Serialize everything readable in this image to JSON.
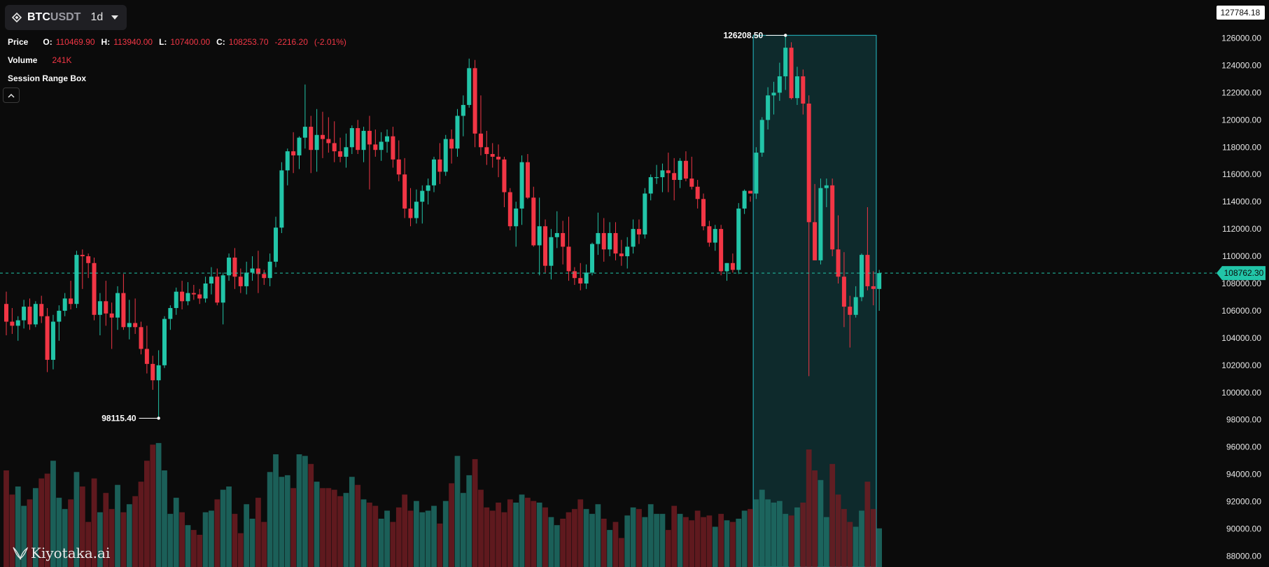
{
  "toolbar": {
    "symbol_base": "BTC",
    "symbol_quote": "USDT",
    "timeframe": "1d"
  },
  "legend": {
    "price_label": "Price",
    "o_key": "O:",
    "o_val": "110469.90",
    "h_key": "H:",
    "h_val": "113940.00",
    "l_key": "L:",
    "l_val": "107400.00",
    "c_key": "C:",
    "c_val": "108253.70",
    "change": "-2216.20",
    "change_pct": "(-2.01%)",
    "volume_label": "Volume",
    "volume_val": "241K",
    "indicator_label": "Session Range Box"
  },
  "annotations": {
    "high_label": "126208.50",
    "low_label": "98115.40"
  },
  "price_axis": {
    "top_value": "127784.18",
    "current_price": "108762.30"
  },
  "watermark": "Kiyotaka.ai",
  "colors": {
    "up": "#22c5a8",
    "down": "#f23645",
    "background": "#0b0b0b",
    "range_box": "#1a7c84"
  },
  "chart_data": {
    "type": "candlestick",
    "symbol": "BTCUSDT",
    "timeframe": "1d",
    "ylim": [
      87200,
      128800
    ],
    "y_ticks": [
      88000,
      90000,
      92000,
      94000,
      96000,
      98000,
      100000,
      102000,
      104000,
      106000,
      108000,
      110000,
      112000,
      114000,
      116000,
      118000,
      120000,
      122000,
      124000,
      126000
    ],
    "current_price": 108762.3,
    "range_high": 126208.5,
    "range_low": 98115.4,
    "session_box": {
      "start_index": 128,
      "end_index": 148,
      "high": 126208.5,
      "low": 87200
    },
    "candles_ohlcv": [
      [
        106500,
        107400,
        104200,
        105200,
        60
      ],
      [
        105200,
        106200,
        104300,
        104900,
        45
      ],
      [
        104900,
        105600,
        103800,
        105300,
        50
      ],
      [
        105300,
        106800,
        104700,
        106300,
        38
      ],
      [
        106300,
        106900,
        104600,
        105000,
        42
      ],
      [
        105000,
        106700,
        104800,
        106500,
        49
      ],
      [
        106500,
        107100,
        105100,
        105600,
        55
      ],
      [
        105600,
        106200,
        101500,
        102400,
        58
      ],
      [
        102400,
        105700,
        101700,
        105200,
        66
      ],
      [
        105200,
        106400,
        103800,
        106000,
        43
      ],
      [
        106000,
        107300,
        105600,
        106900,
        36
      ],
      [
        106900,
        108200,
        106100,
        106500,
        42
      ],
      [
        106500,
        110400,
        106200,
        110100,
        59
      ],
      [
        110100,
        110500,
        107600,
        110000,
        50
      ],
      [
        110000,
        110200,
        108400,
        109500,
        28
      ],
      [
        109500,
        109900,
        105300,
        105700,
        55
      ],
      [
        105700,
        107300,
        104200,
        106700,
        34
      ],
      [
        106700,
        108200,
        104900,
        105800,
        46
      ],
      [
        105800,
        106600,
        103200,
        105500,
        36
      ],
      [
        105500,
        107800,
        104600,
        107300,
        51
      ],
      [
        107300,
        108700,
        104600,
        104800,
        34
      ],
      [
        104800,
        106800,
        103900,
        105100,
        39
      ],
      [
        105100,
        106900,
        104300,
        104800,
        44
      ],
      [
        104800,
        105200,
        102800,
        103200,
        53
      ],
      [
        103200,
        104900,
        101400,
        102100,
        66
      ],
      [
        102100,
        102700,
        100200,
        100900,
        76
      ],
      [
        100900,
        103100,
        98100,
        102000,
        77
      ],
      [
        102000,
        105600,
        101800,
        105400,
        60
      ],
      [
        105400,
        106400,
        104600,
        106200,
        33
      ],
      [
        106200,
        107700,
        105700,
        107400,
        43
      ],
      [
        107400,
        108200,
        106100,
        106700,
        34
      ],
      [
        106700,
        108100,
        106400,
        107300,
        26
      ],
      [
        107300,
        107900,
        106800,
        107200,
        23
      ],
      [
        107200,
        107600,
        106500,
        106900,
        20
      ],
      [
        106900,
        108500,
        106600,
        108000,
        34
      ],
      [
        108000,
        109200,
        107200,
        108500,
        35
      ],
      [
        108500,
        109100,
        106400,
        106600,
        42
      ],
      [
        106600,
        108800,
        105000,
        108600,
        48
      ],
      [
        108600,
        110200,
        108200,
        109900,
        50
      ],
      [
        109900,
        110600,
        107600,
        108500,
        33
      ],
      [
        108500,
        109100,
        107300,
        107800,
        21
      ],
      [
        107800,
        109600,
        107200,
        108800,
        39
      ],
      [
        108800,
        110000,
        108200,
        109100,
        30
      ],
      [
        109100,
        110400,
        107300,
        108700,
        43
      ],
      [
        108700,
        109000,
        107900,
        108400,
        28
      ],
      [
        108400,
        110200,
        107800,
        109600,
        59
      ],
      [
        109600,
        112900,
        109200,
        112100,
        70
      ],
      [
        112100,
        116900,
        111700,
        116300,
        56
      ],
      [
        116300,
        117900,
        115200,
        117700,
        57
      ],
      [
        117700,
        119100,
        116100,
        117400,
        49
      ],
      [
        117400,
        118800,
        116400,
        118700,
        70
      ],
      [
        118700,
        122600,
        117900,
        119500,
        69
      ],
      [
        119500,
        120300,
        116100,
        117800,
        64
      ],
      [
        117800,
        120800,
        116200,
        118900,
        53
      ],
      [
        118900,
        120600,
        117200,
        118600,
        49
      ],
      [
        118600,
        120200,
        117600,
        118300,
        49
      ],
      [
        118300,
        119900,
        116900,
        117700,
        48
      ],
      [
        117700,
        118700,
        116900,
        117300,
        44
      ],
      [
        117300,
        119000,
        116500,
        118000,
        46
      ],
      [
        118000,
        119600,
        117500,
        119400,
        56
      ],
      [
        119400,
        120000,
        117500,
        117800,
        51
      ],
      [
        117800,
        119500,
        116900,
        119200,
        42
      ],
      [
        119200,
        120300,
        114900,
        118200,
        40
      ],
      [
        118200,
        119300,
        117300,
        117800,
        38
      ],
      [
        117800,
        119100,
        117000,
        118400,
        30
      ],
      [
        118400,
        119300,
        117600,
        118800,
        35
      ],
      [
        118800,
        119500,
        116500,
        117100,
        28
      ],
      [
        117100,
        118500,
        115500,
        116000,
        37
      ],
      [
        116000,
        117200,
        112800,
        113500,
        45
      ],
      [
        113500,
        115000,
        112200,
        112800,
        35
      ],
      [
        112800,
        114900,
        112400,
        114000,
        41
      ],
      [
        114000,
        115200,
        112400,
        114800,
        34
      ],
      [
        114800,
        115700,
        113800,
        115200,
        35
      ],
      [
        115200,
        117300,
        114700,
        117100,
        38
      ],
      [
        117100,
        118300,
        115300,
        116200,
        27
      ],
      [
        116200,
        118900,
        115900,
        118600,
        41
      ],
      [
        118600,
        119300,
        116800,
        117900,
        52
      ],
      [
        117900,
        120800,
        117300,
        120300,
        69
      ],
      [
        120300,
        121800,
        118800,
        121100,
        46
      ],
      [
        121100,
        124500,
        120900,
        123800,
        57
      ],
      [
        123800,
        124400,
        118000,
        119000,
        67
      ],
      [
        119000,
        121800,
        117400,
        118000,
        48
      ],
      [
        118000,
        119200,
        116700,
        117500,
        37
      ],
      [
        117500,
        118300,
        116500,
        117300,
        35
      ],
      [
        117300,
        118200,
        115800,
        117100,
        40
      ],
      [
        117100,
        117300,
        113600,
        114700,
        34
      ],
      [
        114700,
        115000,
        111900,
        112200,
        42
      ],
      [
        112200,
        114000,
        110700,
        113500,
        40
      ],
      [
        113500,
        117400,
        112300,
        116900,
        45
      ],
      [
        116900,
        117500,
        114200,
        114300,
        43
      ],
      [
        114300,
        115100,
        110700,
        110800,
        41
      ],
      [
        110800,
        114300,
        108600,
        112200,
        40
      ],
      [
        112200,
        112700,
        108800,
        109300,
        37
      ],
      [
        109300,
        112000,
        108300,
        111400,
        31
      ],
      [
        111400,
        113300,
        110600,
        111700,
        26
      ],
      [
        111700,
        112600,
        109400,
        110700,
        30
      ],
      [
        110700,
        112900,
        108200,
        108900,
        34
      ],
      [
        108900,
        109200,
        107900,
        108400,
        36
      ],
      [
        108400,
        109500,
        107500,
        108000,
        42
      ],
      [
        108000,
        109400,
        107600,
        108800,
        36
      ],
      [
        108800,
        111000,
        108600,
        110900,
        33
      ],
      [
        110900,
        113200,
        110100,
        111700,
        39
      ],
      [
        111700,
        112800,
        109600,
        110500,
        30
      ],
      [
        110500,
        112500,
        110000,
        111700,
        23
      ],
      [
        111700,
        112500,
        109700,
        110200,
        28
      ],
      [
        110200,
        111200,
        109300,
        110000,
        18
      ],
      [
        110000,
        111400,
        109100,
        110700,
        32
      ],
      [
        110700,
        112700,
        110200,
        112000,
        37
      ],
      [
        112000,
        112700,
        110900,
        111600,
        36
      ],
      [
        111600,
        115000,
        111300,
        114600,
        31
      ],
      [
        114600,
        116000,
        114100,
        115800,
        39
      ],
      [
        115800,
        116700,
        115300,
        115800,
        33
      ],
      [
        115800,
        116800,
        114700,
        116300,
        33
      ],
      [
        116300,
        117600,
        114700,
        116100,
        23
      ],
      [
        116100,
        117200,
        114100,
        115600,
        38
      ],
      [
        115600,
        117200,
        115000,
        117000,
        33
      ],
      [
        117000,
        117700,
        115500,
        115700,
        31
      ],
      [
        115700,
        117300,
        114900,
        115100,
        29
      ],
      [
        115100,
        115600,
        113500,
        114200,
        35
      ],
      [
        114200,
        114600,
        111900,
        112200,
        31
      ],
      [
        112200,
        112600,
        110700,
        111000,
        32
      ],
      [
        111000,
        112300,
        110400,
        112000,
        25
      ],
      [
        112000,
        112300,
        108600,
        108900,
        33
      ],
      [
        108900,
        109500,
        108200,
        109500,
        29
      ],
      [
        109500,
        110200,
        108800,
        109000,
        28
      ],
      [
        109000,
        113900,
        108700,
        113500,
        30
      ],
      [
        113500,
        114900,
        113100,
        114800,
        35
      ],
      [
        114800,
        114400,
        114000,
        114600,
        36
      ],
      [
        114600,
        118000,
        114200,
        117600,
        42
      ],
      [
        117600,
        120200,
        117300,
        120000,
        48
      ],
      [
        120000,
        122400,
        119300,
        121800,
        42
      ],
      [
        121800,
        122800,
        120400,
        122000,
        40
      ],
      [
        122000,
        124200,
        121400,
        123200,
        41
      ],
      [
        123200,
        126208.5,
        122200,
        125300,
        33
      ],
      [
        125300,
        125700,
        121500,
        121600,
        32
      ],
      [
        121600,
        123900,
        121100,
        123200,
        37
      ],
      [
        123200,
        123700,
        120400,
        121200,
        40
      ],
      [
        121200,
        121800,
        101200,
        112500,
        73
      ],
      [
        112500,
        115300,
        109700,
        109700,
        60
      ],
      [
        109700,
        115700,
        109400,
        115000,
        54
      ],
      [
        115000,
        115700,
        113600,
        115200,
        31
      ],
      [
        115200,
        115700,
        110000,
        110500,
        64
      ],
      [
        110500,
        113000,
        108000,
        108500,
        45
      ],
      [
        108500,
        110300,
        104800,
        106300,
        36
      ],
      [
        106300,
        107100,
        103300,
        105700,
        28
      ],
      [
        105700,
        107800,
        105500,
        107000,
        25
      ],
      [
        107000,
        110200,
        106700,
        110100,
        35
      ],
      [
        110100,
        113600,
        107500,
        107800,
        53
      ],
      [
        107800,
        108900,
        106400,
        107600,
        36
      ],
      [
        107600,
        109000,
        106000,
        108762.3,
        24
      ]
    ]
  }
}
